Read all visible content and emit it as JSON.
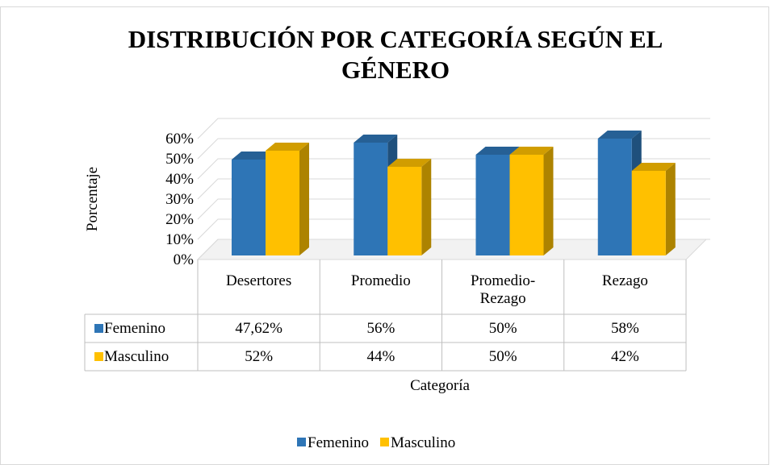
{
  "chart_data": {
    "type": "bar3d",
    "title": "DISTRIBUCIÓN  POR CATEGORÍA SEGÚN EL GÉNERO",
    "x_label": "Categoría",
    "y_label": "Porcentaje",
    "categories": [
      "Desertores",
      "Promedio",
      "Promedio-Rezago",
      "Rezago"
    ],
    "series": [
      {
        "name": "Femenino",
        "color": "#2e75b6",
        "values": [
          47.62,
          56,
          50,
          58
        ],
        "value_labels": [
          "47,62%",
          "56%",
          "50%",
          "58%"
        ]
      },
      {
        "name": "Masculino",
        "color": "#ffc000",
        "values": [
          52,
          44,
          50,
          42
        ],
        "value_labels": [
          "52%",
          "44%",
          "50%",
          "42%"
        ]
      }
    ],
    "ylim": [
      0,
      60
    ],
    "yticks": [
      {
        "value": 0,
        "label": "0%"
      },
      {
        "value": 10,
        "label": "10%"
      },
      {
        "value": 20,
        "label": "20%"
      },
      {
        "value": 30,
        "label": "30%"
      },
      {
        "value": 40,
        "label": "40%"
      },
      {
        "value": 50,
        "label": "50%"
      },
      {
        "value": 60,
        "label": "60%"
      }
    ],
    "grid": true,
    "legend": "bottom",
    "data_table": true
  }
}
